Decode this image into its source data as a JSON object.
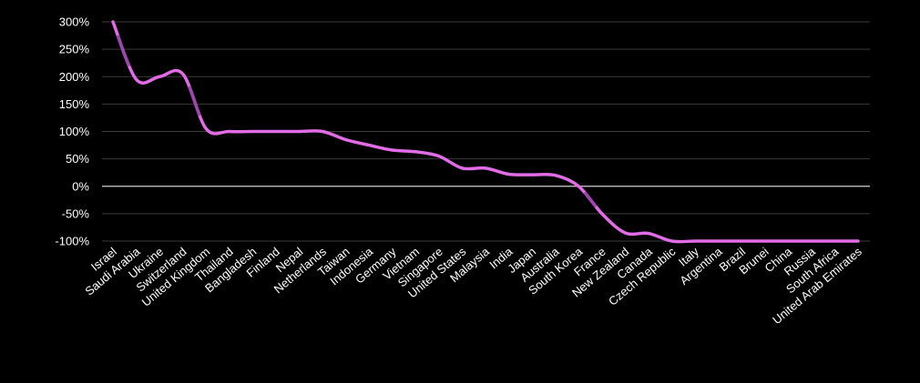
{
  "chart_data": {
    "type": "line",
    "categories": [
      "Israel",
      "Saudi Arabia",
      "Ukraine",
      "Switzerland",
      "United Kingdom",
      "Thailand",
      "Bangladesh",
      "Finland",
      "Nepal",
      "Netherlands",
      "Taiwan",
      "Indonesia",
      "Germany",
      "Vietnam",
      "Singapore",
      "United States",
      "Malaysia",
      "India",
      "Japan",
      "Australia",
      "South Korea",
      "France",
      "New Zealand",
      "Canada",
      "Czech Republic",
      "Italy",
      "Argentina",
      "Brazil",
      "Brunei",
      "China",
      "Russia",
      "South Africa",
      "United Arab Emirates"
    ],
    "series": [
      {
        "values": [
          300,
          195,
          200,
          205,
          105,
          100,
          100,
          100,
          100,
          100,
          85,
          75,
          66,
          63,
          55,
          33,
          33,
          22,
          21,
          20,
          0,
          -50,
          -85,
          -86,
          -100,
          -100,
          -100,
          -100,
          -100,
          -100,
          -100,
          -100,
          -100
        ]
      }
    ],
    "yticks": [
      "300%",
      "250%",
      "200%",
      "150%",
      "100%",
      "50%",
      "0%",
      "-50%",
      "-100%"
    ],
    "ylim": [
      -100,
      300
    ],
    "grid": true,
    "colors": {
      "line": "#e26be6",
      "line_dark": "#8f3fa3",
      "background": "#000000",
      "grid": "#3a3a3a",
      "zero_line": "#d0d0d0",
      "text": "#ffffff"
    }
  }
}
